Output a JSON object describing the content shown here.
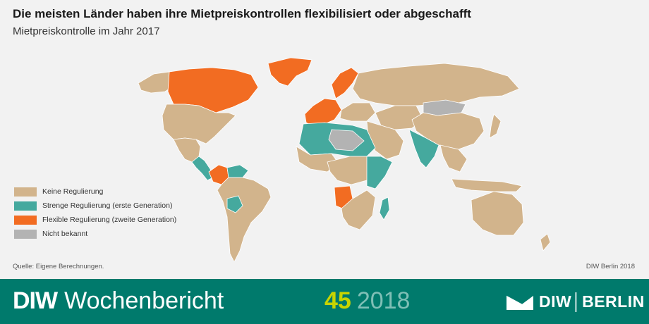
{
  "header": {
    "title": "Die meisten Länder haben ihre Mietpreiskontrollen flexibilisiert oder abgeschafft",
    "subtitle": "Mietpreiskontrolle im Jahr 2017"
  },
  "legend": [
    {
      "label": "Keine Regulierung",
      "color": "#d2b48c"
    },
    {
      "label": "Strenge Regulierung (erste Generation)",
      "color": "#45a99e"
    },
    {
      "label": "Flexible Regulierung (zweite Generation)",
      "color": "#f26c22"
    },
    {
      "label": "Nicht bekannt",
      "color": "#b3b3b3"
    }
  ],
  "map_regions": [
    {
      "name": "Canada",
      "category": "flexible"
    },
    {
      "name": "United States",
      "category": "none"
    },
    {
      "name": "Mexico",
      "category": "none"
    },
    {
      "name": "Central America",
      "category": "strict"
    },
    {
      "name": "Colombia",
      "category": "flexible"
    },
    {
      "name": "Venezuela",
      "category": "strict"
    },
    {
      "name": "Brazil",
      "category": "none"
    },
    {
      "name": "Bolivia",
      "category": "strict"
    },
    {
      "name": "Greenland",
      "category": "flexible"
    },
    {
      "name": "Western Europe",
      "category": "flexible"
    },
    {
      "name": "Scandinavia",
      "category": "flexible"
    },
    {
      "name": "Russia",
      "category": "none"
    },
    {
      "name": "Mongolia",
      "category": "unknown"
    },
    {
      "name": "China",
      "category": "none"
    },
    {
      "name": "India",
      "category": "strict"
    },
    {
      "name": "North Africa",
      "category": "strict"
    },
    {
      "name": "Sahara",
      "category": "unknown"
    },
    {
      "name": "Angola",
      "category": "flexible"
    },
    {
      "name": "East Africa",
      "category": "strict"
    },
    {
      "name": "Madagascar",
      "category": "strict"
    },
    {
      "name": "Australia",
      "category": "none"
    }
  ],
  "category_colors": {
    "none": "#d2b48c",
    "strict": "#45a99e",
    "flexible": "#f26c22",
    "unknown": "#b3b3b3"
  },
  "source": "Quelle: Eigene Berechnungen.",
  "credit": "DIW Berlin 2018",
  "footer": {
    "brand_short": "DIW",
    "brand_long": "Wochenbericht",
    "issue_number": "45",
    "issue_year": "2018",
    "logo_left": "DIW",
    "logo_right": "BERLIN"
  }
}
